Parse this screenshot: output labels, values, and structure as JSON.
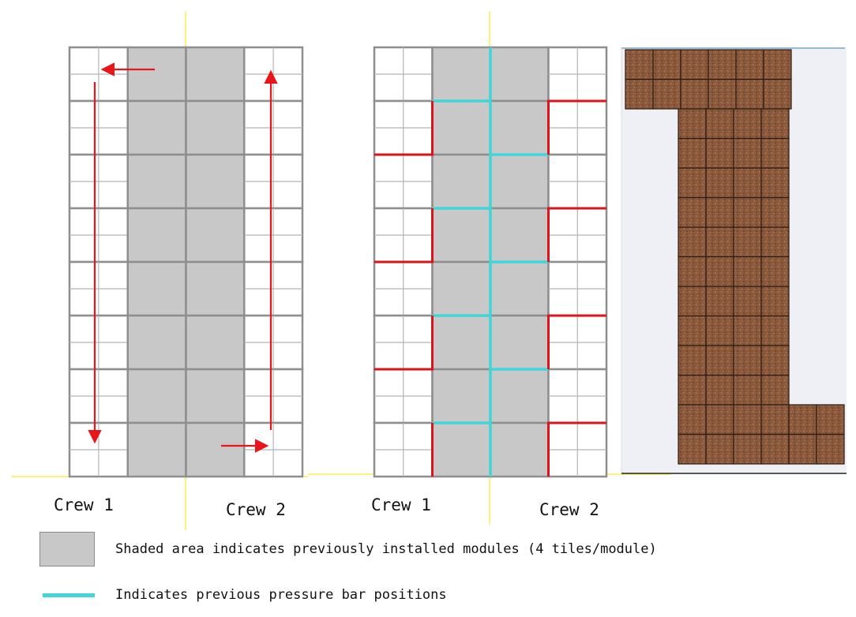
{
  "crew_labels": {
    "left_crew1": "Crew 1",
    "left_crew2": "Crew 2",
    "right_crew1": "Crew 1",
    "right_crew2": "Crew 2"
  },
  "legend": {
    "shaded_text": "Shaded area indicates previously installed modules (4 tiles/module)",
    "cyan_text": "Indicates previous pressure bar positions"
  },
  "colors": {
    "shaded_module": "#c8c8c8",
    "grid_line": "#8e8e8e",
    "arrow": "#e8151b",
    "red_bar": "#d9141b",
    "cyan_bar": "#40d6d8",
    "axis_line": "#fff27a",
    "tile": "#8b5a3c",
    "photo_background": "#eef0f5"
  },
  "diagram": {
    "rows": 8,
    "columns": 4,
    "shaded_columns": [
      1,
      2
    ],
    "tiles_per_module": 4
  }
}
